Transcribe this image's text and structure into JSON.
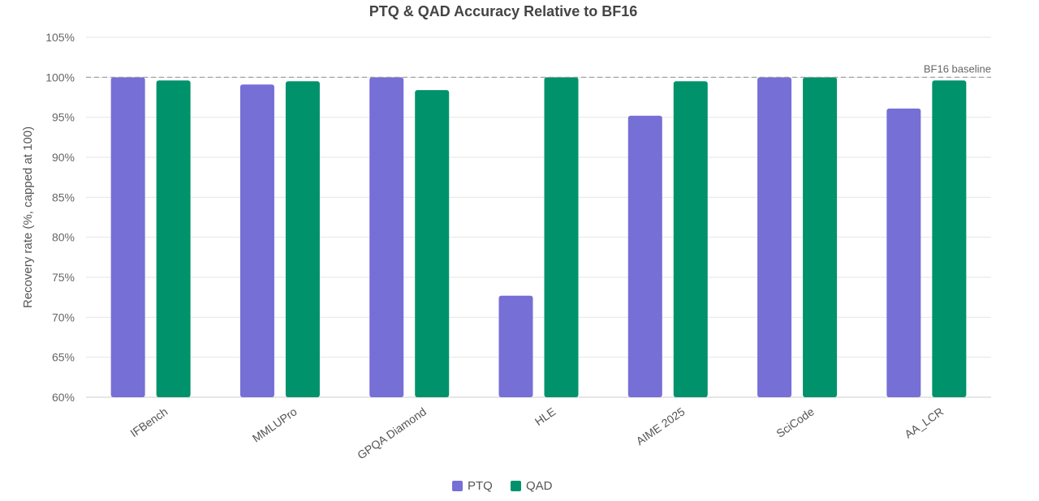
{
  "chart_data": {
    "type": "bar",
    "title": "PTQ & QAD Accuracy Relative to BF16",
    "xlabel": "",
    "ylabel": "Recovery rate (%, capped at 100)",
    "ylim": [
      60,
      105
    ],
    "yticks": [
      60,
      65,
      70,
      75,
      80,
      85,
      90,
      95,
      100,
      105
    ],
    "ytick_labels": [
      "60%",
      "65%",
      "70%",
      "75%",
      "80%",
      "85%",
      "90%",
      "95%",
      "100%",
      "105%"
    ],
    "categories": [
      "IFBench",
      "MMLUPro",
      "GPQA Diamond",
      "HLE",
      "AIME 2025",
      "SciCode",
      "AA_LCR"
    ],
    "series": [
      {
        "name": "PTQ",
        "color": "#766fd6",
        "values": [
          100,
          99.1,
          100,
          72.7,
          95.2,
          100,
          96.1
        ]
      },
      {
        "name": "QAD",
        "color": "#00926b",
        "values": [
          99.6,
          99.5,
          98.4,
          100,
          99.5,
          100,
          99.6
        ]
      }
    ],
    "grid": true,
    "legend": "bottom-center",
    "baseline": {
      "value": 100,
      "label": "BF16 baseline"
    }
  }
}
